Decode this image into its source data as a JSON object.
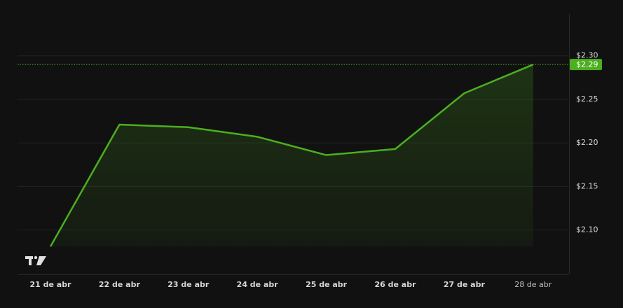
{
  "chart_data": {
    "type": "area",
    "categories": [
      "21 de abr",
      "22 de abr",
      "23 de abr",
      "24 de abr",
      "25 de abr",
      "26 de abr",
      "27 de abr",
      "28 de abr"
    ],
    "values": [
      2.081,
      2.221,
      2.218,
      2.207,
      2.186,
      2.193,
      2.257,
      2.29
    ],
    "color": "#4caf1f",
    "ylim": [
      2.049,
      2.348
    ],
    "yticks": [
      {
        "value": 2.1,
        "label": "$2.10"
      },
      {
        "value": 2.15,
        "label": "$2.15"
      },
      {
        "value": 2.2,
        "label": "$2.20"
      },
      {
        "value": 2.25,
        "label": "$2.25"
      },
      {
        "value": 2.3,
        "label": "$2.30"
      }
    ],
    "grid": true,
    "price_marker": {
      "value": 2.29,
      "label": "$2.29"
    }
  }
}
